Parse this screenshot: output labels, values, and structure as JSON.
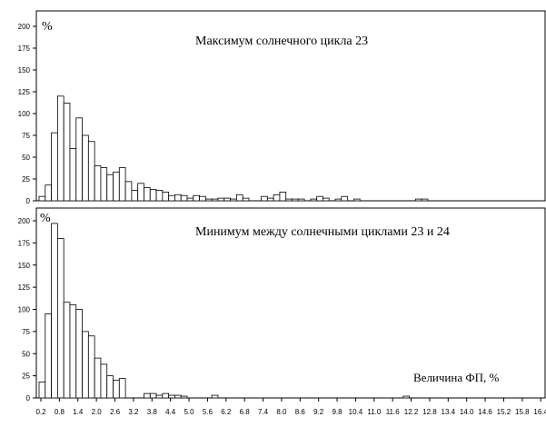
{
  "chart_data": [
    {
      "type": "bar",
      "title": "Максимум солнечного цикла 23",
      "ylabel": "%",
      "xlabel": "",
      "ylim": [
        0,
        200
      ],
      "yticks": [
        "0",
        "25",
        "50",
        "75",
        "100",
        "125",
        "150",
        "175",
        "200"
      ],
      "x_start": 0.2,
      "bin_width": 0.2,
      "values": [
        5,
        18,
        78,
        120,
        112,
        60,
        95,
        75,
        68,
        40,
        38,
        30,
        33,
        38,
        22,
        12,
        20,
        15,
        13,
        12,
        10,
        6,
        7,
        6,
        3,
        6,
        5,
        2,
        2,
        3,
        3,
        2,
        7,
        3,
        0,
        0,
        5,
        3,
        7,
        10,
        2,
        2,
        2,
        0,
        2,
        5,
        3,
        0,
        2,
        5,
        0,
        2,
        0,
        0,
        0,
        0,
        0,
        0,
        0,
        0,
        0,
        2,
        2,
        0,
        0,
        0,
        0,
        0,
        0,
        0,
        0,
        0,
        0,
        0,
        0,
        0,
        0,
        0,
        0,
        0,
        0,
        0,
        0,
        0,
        0,
        0,
        0,
        0,
        0,
        0,
        0,
        0,
        0,
        0,
        0,
        0,
        0,
        0,
        0,
        0,
        0,
        0,
        0,
        0,
        0,
        0,
        2,
        2,
        2,
        2
      ]
    },
    {
      "type": "bar",
      "title": "Минимум между солнечными циклами 23 и 24",
      "ylabel": "%",
      "xlabel": "Величина ФП, %",
      "ylim": [
        0,
        200
      ],
      "yticks": [
        "0",
        "25",
        "50",
        "75",
        "100",
        "125",
        "150",
        "175",
        "200"
      ],
      "x_start": 0.2,
      "bin_width": 0.2,
      "values": [
        18,
        95,
        197,
        180,
        108,
        105,
        100,
        75,
        70,
        45,
        38,
        25,
        20,
        22,
        0,
        0,
        0,
        5,
        5,
        3,
        5,
        3,
        3,
        2,
        0,
        0,
        0,
        0,
        3,
        0,
        0,
        0,
        0,
        0,
        0,
        0,
        0,
        0,
        0,
        0,
        0,
        0,
        0,
        0,
        0,
        0,
        0,
        0,
        0,
        0,
        0,
        0,
        0,
        0,
        0,
        0,
        0,
        0,
        0,
        2,
        0,
        0,
        0,
        0,
        0,
        0,
        0,
        0,
        0,
        0,
        0,
        0,
        0,
        0,
        0,
        0,
        0,
        0,
        0,
        0,
        0,
        0,
        0,
        0,
        0,
        0,
        0,
        0,
        0,
        0,
        0,
        0,
        0,
        0,
        0,
        0,
        0,
        0,
        0,
        0,
        0,
        0,
        0,
        0,
        0,
        0,
        0,
        0,
        0,
        0
      ]
    }
  ],
  "x_tick_labels": [
    "0.2",
    "0.8",
    "1.4",
    "2.0",
    "2.6",
    "3.2",
    "3.8",
    "4.4",
    "5.0",
    "5.6",
    "6.2",
    "6.8",
    "7.4",
    "8.0",
    "8.6",
    "9.2",
    "9.8",
    "10.4",
    "11.0",
    "11.6",
    "12.2",
    "12.8",
    "13.4",
    "14.0",
    "14.6",
    "15.2",
    "15.8",
    "16.4"
  ]
}
